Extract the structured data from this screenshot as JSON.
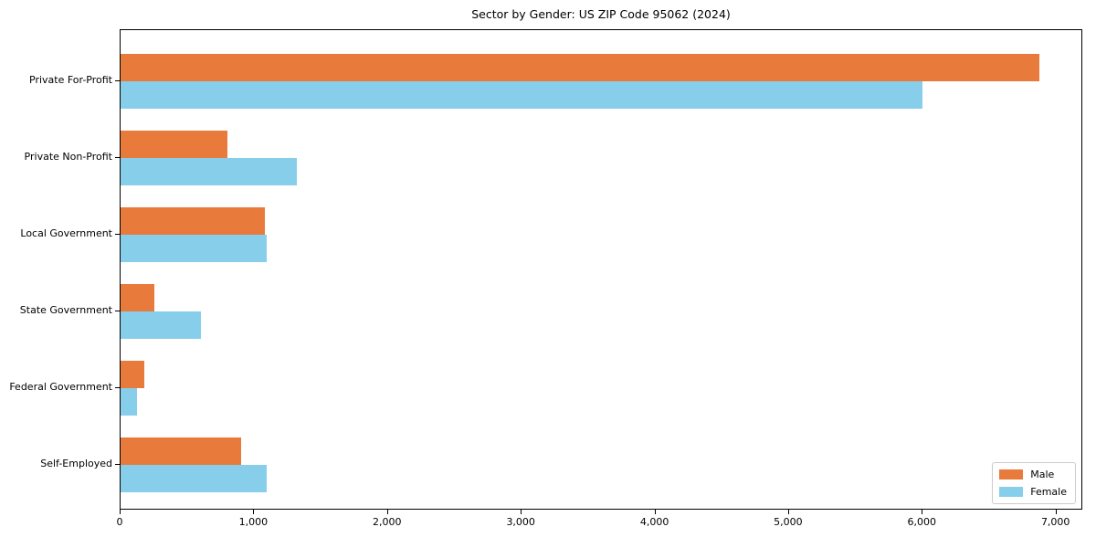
{
  "chart_data": {
    "type": "bar",
    "orientation": "horizontal",
    "title": "Sector by Gender: US ZIP Code 95062 (2024)",
    "categories": [
      "Private For-Profit",
      "Private Non-Profit",
      "Local Government",
      "State Government",
      "Federal Government",
      "Self-Employed"
    ],
    "series": [
      {
        "name": "Male",
        "color": "#e87a3c",
        "values": [
          6870,
          800,
          1080,
          255,
          175,
          900
        ]
      },
      {
        "name": "Female",
        "color": "#87ceeb",
        "values": [
          6000,
          1320,
          1095,
          600,
          120,
          1090
        ]
      }
    ],
    "xlabel": "",
    "ylabel": "",
    "xlim": [
      0,
      7200
    ],
    "x_ticks": [
      {
        "value": 0,
        "label": "0"
      },
      {
        "value": 1000,
        "label": "1,000"
      },
      {
        "value": 2000,
        "label": "2,000"
      },
      {
        "value": 3000,
        "label": "3,000"
      },
      {
        "value": 4000,
        "label": "4,000"
      },
      {
        "value": 5000,
        "label": "5,000"
      },
      {
        "value": 6000,
        "label": "6,000"
      },
      {
        "value": 7000,
        "label": "7,000"
      }
    ],
    "grid": false,
    "legend_position": "lower right"
  }
}
